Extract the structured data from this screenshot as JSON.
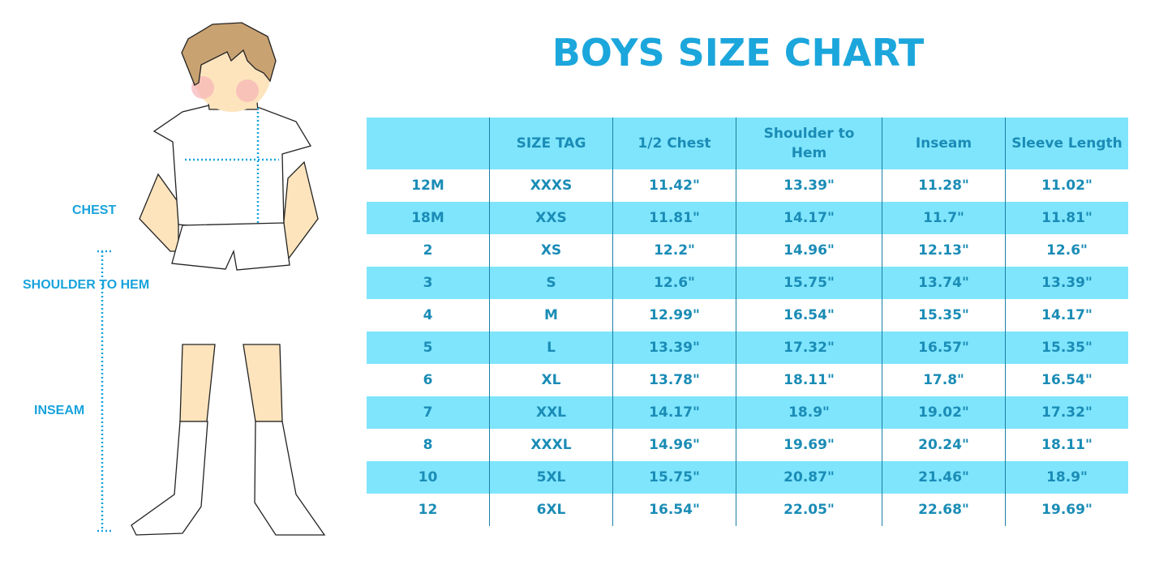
{
  "title": "BOYS SIZE CHART",
  "figure_labels": {
    "chest": "CHEST",
    "shoulder_to_hem": "SHOULDER TO HEM",
    "inseam": "INSEAM"
  },
  "colors": {
    "title": "#1ba6dc",
    "header_bg": "#7fe5fc",
    "text": "#1a8cb6",
    "stripe": "#7fe5fc"
  },
  "table": {
    "headers": [
      "",
      "SIZE TAG",
      "1/2 Chest",
      "Shoulder to Hem",
      "Inseam",
      "Sleeve Length"
    ],
    "rows": [
      [
        "12M",
        "XXXS",
        "11.42\"",
        "13.39\"",
        "11.28\"",
        "11.02\""
      ],
      [
        "18M",
        "XXS",
        "11.81\"",
        "14.17\"",
        "11.7\"",
        "11.81\""
      ],
      [
        "2",
        "XS",
        "12.2\"",
        "14.96\"",
        "12.13\"",
        "12.6\""
      ],
      [
        "3",
        "S",
        "12.6\"",
        "15.75\"",
        "13.74\"",
        "13.39\""
      ],
      [
        "4",
        "M",
        "12.99\"",
        "16.54\"",
        "15.35\"",
        "14.17\""
      ],
      [
        "5",
        "L",
        "13.39\"",
        "17.32\"",
        "16.57\"",
        "15.35\""
      ],
      [
        "6",
        "XL",
        "13.78\"",
        "18.11\"",
        "17.8\"",
        "16.54\""
      ],
      [
        "7",
        "XXL",
        "14.17\"",
        "18.9\"",
        "19.02\"",
        "17.32\""
      ],
      [
        "8",
        "XXXL",
        "14.96\"",
        "19.69\"",
        "20.24\"",
        "18.11\""
      ],
      [
        "10",
        "5XL",
        "15.75\"",
        "20.87\"",
        "21.46\"",
        "18.9\""
      ],
      [
        "12",
        "6XL",
        "16.54\"",
        "22.05\"",
        "22.68\"",
        "19.69\""
      ]
    ]
  }
}
